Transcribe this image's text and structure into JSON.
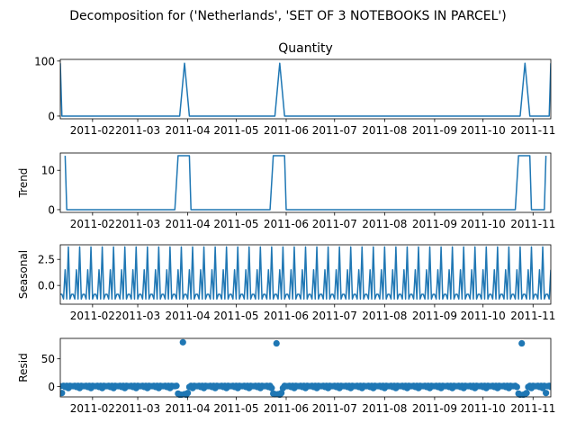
{
  "figure": {
    "suptitle": "Decomposition for ('Netherlands', 'SET OF 3 NOTEBOOKS IN PARCEL')"
  },
  "colors": {
    "line": "#1f77b4",
    "axes": "#000000",
    "background": "#ffffff"
  },
  "chart_data": [
    {
      "type": "line",
      "title": "Quantity",
      "ylabel": "",
      "x_range": [
        "2011-01-12",
        "2011-11-12"
      ],
      "ylim": [
        -5,
        103
      ],
      "yticks": [
        0,
        100
      ],
      "xtick_labels": [
        "2011-02",
        "2011-03",
        "2011-04",
        "2011-05",
        "2011-06",
        "2011-07",
        "2011-08",
        "2011-09",
        "2011-10",
        "2011-11"
      ],
      "xtick_dates": [
        "2011-02-01",
        "2011-03-01",
        "2011-04-01",
        "2011-05-01",
        "2011-06-01",
        "2011-07-01",
        "2011-08-01",
        "2011-09-01",
        "2011-10-01",
        "2011-11-01"
      ],
      "series": [
        {
          "points": [
            [
              "2011-01-12",
              96
            ],
            [
              "2011-01-13",
              0
            ],
            [
              "2011-03-27",
              0
            ],
            [
              "2011-03-30",
              96
            ],
            [
              "2011-04-02",
              0
            ],
            [
              "2011-05-25",
              0
            ],
            [
              "2011-05-28",
              96
            ],
            [
              "2011-05-31",
              0
            ],
            [
              "2011-10-24",
              0
            ],
            [
              "2011-10-27",
              96
            ],
            [
              "2011-10-30",
              0
            ],
            [
              "2011-11-11",
              0
            ],
            [
              "2011-11-12",
              96
            ]
          ]
        }
      ]
    },
    {
      "type": "line",
      "title": "",
      "ylabel": "Trend",
      "x_range": [
        "2011-01-12",
        "2011-11-12"
      ],
      "ylim": [
        -0.7,
        14.4
      ],
      "yticks": [
        0,
        10
      ],
      "xtick_labels": [
        "2011-02",
        "2011-03",
        "2011-04",
        "2011-05",
        "2011-06",
        "2011-07",
        "2011-08",
        "2011-09",
        "2011-10",
        "2011-11"
      ],
      "xtick_dates": [
        "2011-02-01",
        "2011-03-01",
        "2011-04-01",
        "2011-05-01",
        "2011-06-01",
        "2011-07-01",
        "2011-08-01",
        "2011-09-01",
        "2011-10-01",
        "2011-11-01"
      ],
      "series": [
        {
          "points": [
            [
              "2011-01-15",
              13.7
            ],
            [
              "2011-01-16",
              0
            ],
            [
              "2011-03-24",
              0
            ],
            [
              "2011-03-26",
              13.7
            ],
            [
              "2011-04-02",
              13.7
            ],
            [
              "2011-04-03",
              0
            ],
            [
              "2011-05-22",
              0
            ],
            [
              "2011-05-24",
              13.7
            ],
            [
              "2011-05-31",
              13.7
            ],
            [
              "2011-06-01",
              0
            ],
            [
              "2011-10-21",
              0
            ],
            [
              "2011-10-23",
              13.7
            ],
            [
              "2011-10-30",
              13.7
            ],
            [
              "2011-10-31",
              0
            ],
            [
              "2011-11-08",
              0
            ],
            [
              "2011-11-09",
              13.7
            ]
          ]
        }
      ]
    },
    {
      "type": "line",
      "title": "",
      "ylabel": "Seasonal",
      "x_range": [
        "2011-01-12",
        "2011-11-12"
      ],
      "ylim": [
        -1.8,
        3.9
      ],
      "yticks": [
        0.0,
        2.5
      ],
      "ytick_labels": [
        "0.0",
        "2.5"
      ],
      "xtick_labels": [
        "2011-02",
        "2011-03",
        "2011-04",
        "2011-05",
        "2011-06",
        "2011-07",
        "2011-08",
        "2011-09",
        "2011-10",
        "2011-11"
      ],
      "xtick_dates": [
        "2011-02-01",
        "2011-03-01",
        "2011-04-01",
        "2011-05-01",
        "2011-06-01",
        "2011-07-01",
        "2011-08-01",
        "2011-09-01",
        "2011-10-01",
        "2011-11-01"
      ],
      "period": 7,
      "pattern_start": "2011-01-12",
      "pattern": [
        -0.85,
        -0.85,
        -1.3,
        1.5,
        -1.3,
        3.7,
        -1.3
      ]
    },
    {
      "type": "scatter",
      "title": "",
      "ylabel": "Resid",
      "x_range": [
        "2011-01-12",
        "2011-11-12"
      ],
      "ylim": [
        -19,
        87
      ],
      "yticks": [
        0,
        50
      ],
      "xtick_labels": [
        "2011-02",
        "2011-03",
        "2011-04",
        "2011-05",
        "2011-06",
        "2011-07",
        "2011-08",
        "2011-09",
        "2011-10",
        "2011-11"
      ],
      "xtick_dates": [
        "2011-02-01",
        "2011-03-01",
        "2011-04-01",
        "2011-05-01",
        "2011-06-01",
        "2011-07-01",
        "2011-08-01",
        "2011-09-01",
        "2011-10-01",
        "2011-11-01"
      ],
      "baseline_pattern": [
        0.5,
        0.5,
        1.0,
        -1.0,
        1.0,
        -3.0,
        1.0
      ],
      "special_points": [
        [
          "2011-01-13",
          -12
        ],
        [
          "2011-03-26",
          -13
        ],
        [
          "2011-03-27",
          -15
        ],
        [
          "2011-03-28",
          -15
        ],
        [
          "2011-03-29",
          80
        ],
        [
          "2011-03-30",
          -14
        ],
        [
          "2011-03-31",
          -15
        ],
        [
          "2011-04-01",
          -12
        ],
        [
          "2011-05-24",
          -13
        ],
        [
          "2011-05-25",
          -14
        ],
        [
          "2011-05-26",
          78
        ],
        [
          "2011-05-27",
          -14
        ],
        [
          "2011-05-28",
          -15
        ],
        [
          "2011-05-29",
          -12
        ],
        [
          "2011-10-23",
          -13
        ],
        [
          "2011-10-24",
          -15
        ],
        [
          "2011-10-25",
          78
        ],
        [
          "2011-10-26",
          -15
        ],
        [
          "2011-10-27",
          -14
        ],
        [
          "2011-10-28",
          -12
        ],
        [
          "2011-11-09",
          -12
        ]
      ]
    }
  ]
}
